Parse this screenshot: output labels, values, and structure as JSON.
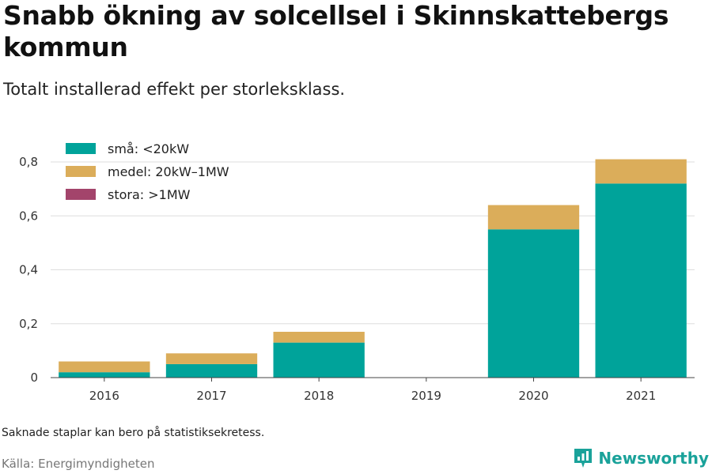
{
  "header": {
    "title": "Snabb ökning av solcellsel i Skinnskattebergs kommun",
    "subtitle": "Totalt installerad effekt per storleksklass."
  },
  "footer": {
    "note": "Saknade staplar kan bero på statistiksekretess.",
    "source": "Källa: Energimyndigheten",
    "brand": "Newsworthy"
  },
  "colors": {
    "small": "#00a39a",
    "medium": "#dbad5a",
    "large": "#a3446b",
    "grid": "#dddddd",
    "brand": "#1aa29a"
  },
  "chart_data": {
    "type": "bar",
    "stacked": true,
    "categories": [
      "2016",
      "2017",
      "2018",
      "2019",
      "2020",
      "2021"
    ],
    "series": [
      {
        "name": "små: <20kW",
        "color": "#00a39a",
        "values": [
          0.02,
          0.05,
          0.13,
          null,
          0.55,
          0.72
        ]
      },
      {
        "name": "medel: 20kW–1MW",
        "color": "#dbad5a",
        "values": [
          0.04,
          0.04,
          0.04,
          null,
          0.09,
          0.09
        ]
      },
      {
        "name": "stora: >1MW",
        "color": "#a3446b",
        "values": [
          0,
          0,
          0,
          null,
          0,
          0
        ]
      }
    ],
    "ylim": [
      0,
      0.8
    ],
    "yticks": [
      0,
      0.2,
      0.4,
      0.6,
      0.8
    ],
    "ytick_labels": [
      "0",
      "0,2",
      "0,4",
      "0,6",
      "0,8"
    ],
    "grid": true,
    "legend_position": "top-left"
  }
}
